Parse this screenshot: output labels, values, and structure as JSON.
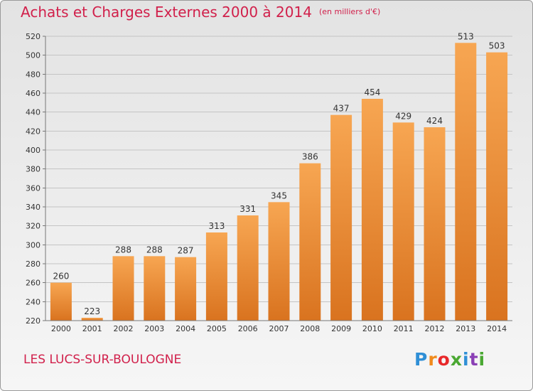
{
  "header": {
    "title": "Achats et Charges Externes 2000 à 2014",
    "subtitle": "(en milliers d'€)"
  },
  "footer": {
    "place": "LES LUCS-SUR-BOULOGNE",
    "logo": "Proxiti",
    "logo_colors": [
      "#2f8fd6",
      "#f08a1c",
      "#e8282a",
      "#4aa832",
      "#2f8fd6",
      "#8a3fb5",
      "#4aa832"
    ]
  },
  "colors": {
    "title": "#d1204b",
    "bar_light": "#f7a652",
    "bar_dark": "#d9731f",
    "background": "#ebebeb"
  },
  "chart_data": {
    "type": "bar",
    "title": "Achats et Charges Externes 2000 à 2014",
    "subtitle": "(en milliers d'€)",
    "xlabel": "",
    "ylabel": "",
    "categories": [
      "2000",
      "2001",
      "2002",
      "2003",
      "2004",
      "2005",
      "2006",
      "2007",
      "2008",
      "2009",
      "2010",
      "2011",
      "2012",
      "2013",
      "2014"
    ],
    "values": [
      260,
      223,
      288,
      288,
      287,
      313,
      331,
      345,
      386,
      437,
      454,
      429,
      424,
      513,
      503
    ],
    "data_labels": [
      "260",
      "223",
      "288",
      "288",
      "287",
      "313",
      "331",
      "345",
      "386",
      "437",
      "454",
      "429",
      "424",
      "513",
      "503"
    ],
    "ylim": [
      220,
      520
    ],
    "yticks": [
      220,
      240,
      260,
      280,
      300,
      320,
      340,
      360,
      380,
      400,
      420,
      440,
      460,
      480,
      500,
      520
    ],
    "grid": true,
    "legend": "none"
  }
}
